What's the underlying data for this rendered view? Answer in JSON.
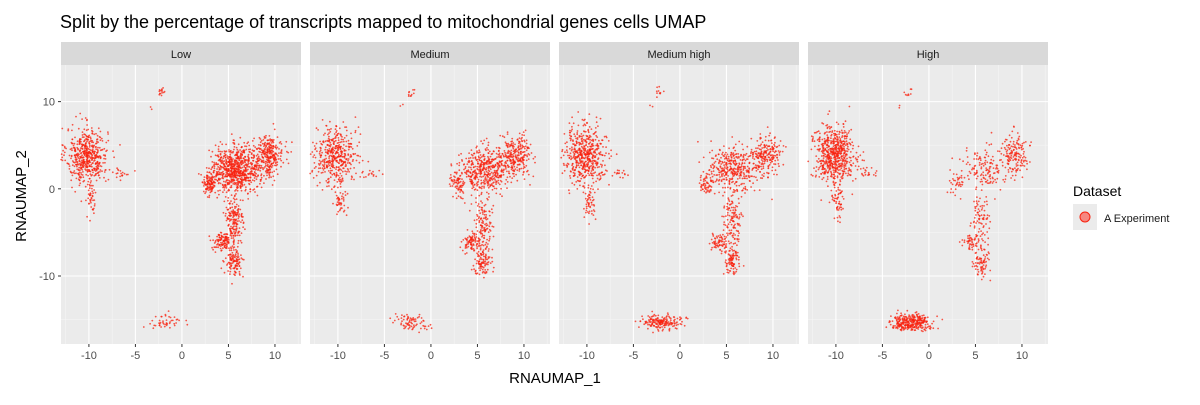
{
  "chart_data": {
    "type": "scatter",
    "title": "Split by the percentage of transcripts mapped to mitochondrial genes cells UMAP",
    "xlabel": "RNAUMAP_1",
    "ylabel": "RNAUMAP_2",
    "xlim": [
      -13,
      12.8
    ],
    "ylim": [
      -17.8,
      14.2
    ],
    "x_ticks": [
      -10,
      -5,
      0,
      5,
      10
    ],
    "x_tick_labels": [
      "-10",
      "-5",
      "0",
      "5",
      "10"
    ],
    "y_ticks": [
      -10,
      0,
      10
    ],
    "y_tick_labels": [
      "-10",
      "0",
      "10"
    ],
    "grid": true,
    "facet_variable": "percentage of transcripts mapped to mitochondrial genes",
    "panels": [
      "Low",
      "Medium",
      "Medium high",
      "High"
    ],
    "legend": {
      "title": "Dataset",
      "position": "right",
      "entries": [
        "A Experiment"
      ]
    },
    "series": [
      {
        "name": "A Experiment",
        "color": "#f8220f"
      }
    ],
    "clusters": [
      {
        "name": "left-blob",
        "cx": -10.2,
        "cy": 3.8,
        "sx": 1.1,
        "sy": 1.6
      },
      {
        "name": "left-tail",
        "cx": -9.8,
        "cy": -1.4,
        "sx": 0.35,
        "sy": 1.1
      },
      {
        "name": "left-side-arm",
        "cx": -6.5,
        "cy": 1.8,
        "sx": 0.5,
        "sy": 0.25
      },
      {
        "name": "top-small",
        "cx": -2.2,
        "cy": 11.1,
        "sx": 0.2,
        "sy": 0.25
      },
      {
        "name": "top-stray",
        "cx": -3.2,
        "cy": 9.5,
        "sx": 0.15,
        "sy": 0.2
      },
      {
        "name": "right-main",
        "cx": 5.8,
        "cy": 2.2,
        "sx": 1.3,
        "sy": 1.3
      },
      {
        "name": "right-upper",
        "cx": 9.3,
        "cy": 3.8,
        "sx": 0.8,
        "sy": 1.1
      },
      {
        "name": "right-left-arm",
        "cx": 2.9,
        "cy": 0.6,
        "sx": 0.4,
        "sy": 0.7
      },
      {
        "name": "right-stalk",
        "cx": 5.6,
        "cy": -3.8,
        "sx": 0.5,
        "sy": 1.5
      },
      {
        "name": "right-lower-left",
        "cx": 4.3,
        "cy": -6.1,
        "sx": 0.5,
        "sy": 0.5
      },
      {
        "name": "right-bottom",
        "cx": 5.6,
        "cy": -8.3,
        "sx": 0.45,
        "sy": 0.8
      },
      {
        "name": "bottom-blob",
        "cx": -2.0,
        "cy": -15.3,
        "sx": 1.1,
        "sy": 0.45
      }
    ],
    "panel_cluster_counts": {
      "Low": [
        520,
        40,
        18,
        14,
        2,
        760,
        300,
        100,
        170,
        110,
        120,
        45
      ],
      "Medium": [
        440,
        45,
        15,
        10,
        2,
        460,
        240,
        70,
        130,
        80,
        100,
        75
      ],
      "Medium high": [
        520,
        50,
        16,
        10,
        2,
        360,
        210,
        60,
        120,
        70,
        90,
        180
      ],
      "High": [
        620,
        55,
        18,
        8,
        2,
        140,
        150,
        35,
        90,
        40,
        70,
        320
      ]
    }
  }
}
